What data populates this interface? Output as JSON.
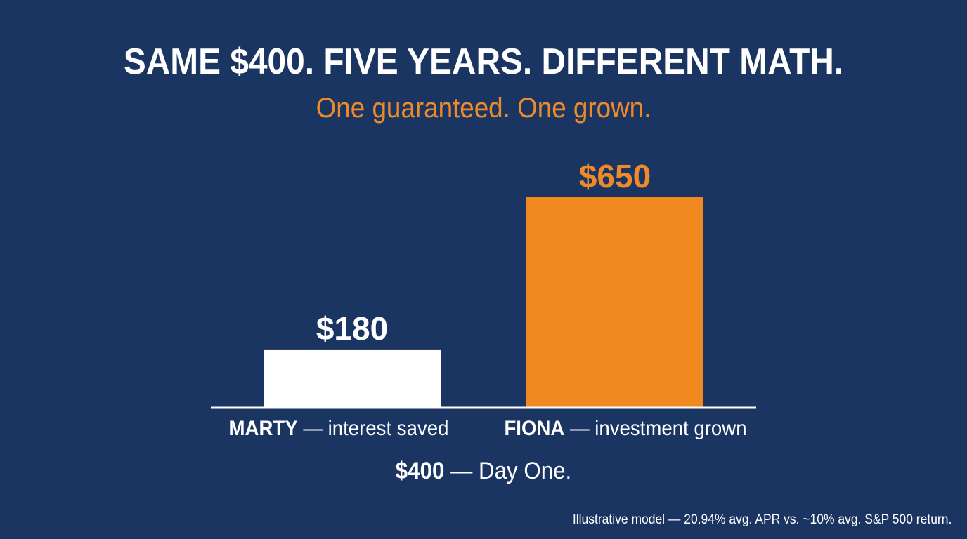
{
  "chart_data": {
    "type": "bar",
    "title": "SAME $400. FIVE YEARS. DIFFERENT MATH.",
    "subtitle": "One guaranteed. One grown.",
    "categories": [
      {
        "name": "MARTY",
        "desc": "— interest saved"
      },
      {
        "name": "FIONA",
        "desc": "— investment grown"
      }
    ],
    "values": [
      180,
      650
    ],
    "value_labels": [
      "$180",
      "$650"
    ],
    "bar_colors": [
      "#ffffff",
      "#f0891f"
    ],
    "value_label_colors": [
      "#ffffff",
      "#ee8a2a"
    ],
    "ylim": [
      0,
      700
    ],
    "grid": false,
    "legend": "none"
  },
  "baseline": {
    "amount": "$400",
    "text": "— Day One."
  },
  "footnote": "Illustrative model — 20.94% avg. APR vs. ~10% avg. S&P 500 return."
}
